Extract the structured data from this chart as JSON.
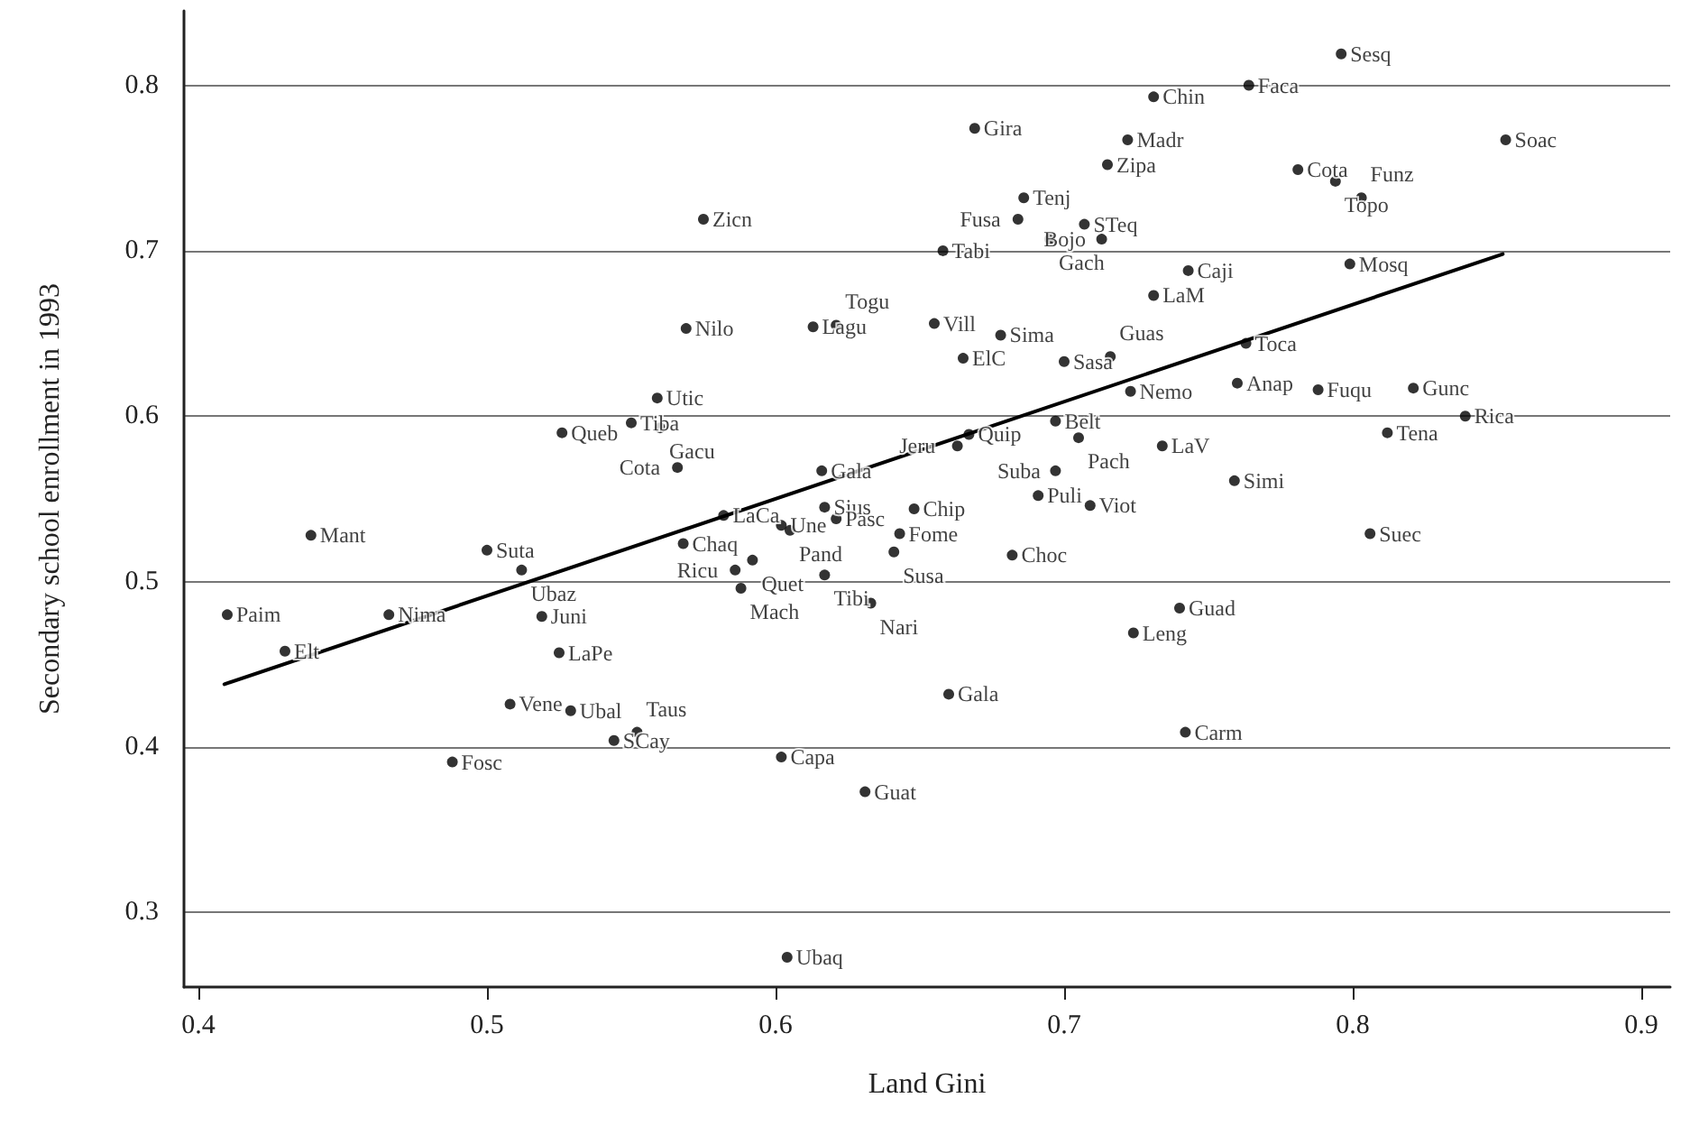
{
  "chart_data": {
    "type": "scatter",
    "xlabel": "Land Gini",
    "ylabel": "Secondary school enrollment in 1993",
    "xlim": [
      0.395,
      0.91
    ],
    "ylim": [
      0.255,
      0.845
    ],
    "xticks": [
      0.4,
      0.5,
      0.6,
      0.7,
      0.8,
      0.9
    ],
    "yticks": [
      0.3,
      0.4,
      0.5,
      0.6,
      0.7,
      0.8
    ],
    "grid": "y",
    "marker": "circle",
    "series": [
      {
        "type": "scatter",
        "color": "#000000",
        "x": [
          0.526,
          0.559,
          0.55,
          0.56,
          0.566,
          0.669,
          0.575,
          0.686,
          0.684,
          0.707,
          0.695,
          0.713,
          0.658,
          0.569,
          0.613,
          0.621,
          0.655,
          0.678,
          0.665,
          0.7,
          0.716,
          0.723,
          0.697,
          0.667,
          0.663,
          0.705,
          0.616,
          0.697,
          0.691,
          0.709,
          0.617,
          0.648,
          0.731,
          0.731,
          0.722,
          0.715,
          0.796,
          0.764,
          0.853,
          0.781,
          0.794,
          0.803,
          0.799,
          0.743,
          0.763,
          0.76,
          0.788,
          0.821,
          0.839,
          0.812,
          0.734,
          0.759,
          0.439,
          0.5,
          0.512,
          0.41,
          0.466,
          0.519,
          0.43,
          0.525,
          0.508,
          0.529,
          0.544,
          0.552,
          0.488,
          0.582,
          0.602,
          0.605,
          0.621,
          0.568,
          0.643,
          0.641,
          0.682,
          0.592,
          0.586,
          0.617,
          0.588,
          0.633,
          0.724,
          0.66,
          0.602,
          0.631,
          0.604,
          0.806,
          0.74,
          0.742
        ],
        "values": [
          0.59,
          0.611,
          0.596,
          0.593,
          0.569,
          0.774,
          0.719,
          0.732,
          0.719,
          0.716,
          0.707,
          0.707,
          0.7,
          0.653,
          0.654,
          0.655,
          0.656,
          0.649,
          0.635,
          0.633,
          0.636,
          0.615,
          0.597,
          0.589,
          0.582,
          0.587,
          0.567,
          0.567,
          0.552,
          0.546,
          0.545,
          0.544,
          0.673,
          0.793,
          0.767,
          0.752,
          0.819,
          0.8,
          0.767,
          0.749,
          0.742,
          0.732,
          0.692,
          0.688,
          0.644,
          0.62,
          0.616,
          0.617,
          0.6,
          0.59,
          0.582,
          0.561,
          0.528,
          0.519,
          0.507,
          0.48,
          0.48,
          0.479,
          0.458,
          0.457,
          0.426,
          0.422,
          0.404,
          0.409,
          0.391,
          0.54,
          0.534,
          0.531,
          0.538,
          0.523,
          0.529,
          0.518,
          0.516,
          0.513,
          0.507,
          0.504,
          0.496,
          0.487,
          0.469,
          0.432,
          0.394,
          0.373,
          0.273,
          0.529,
          0.484,
          0.409
        ],
        "value_labels": [
          "Queb",
          "Utic",
          "Tiba",
          "Gacu",
          "Cota",
          "Gira",
          "Zicn",
          "Tenj",
          "Fusa",
          "STeq",
          "Gach",
          "Bojo",
          "Tabi",
          "Nilo",
          "Lagu",
          "Togu",
          "Vill",
          "Sima",
          "ElC",
          "Sasa",
          "Guas",
          "Nemo",
          "Belt",
          "Quip",
          "Jeru",
          "Pach",
          "Gala",
          "Suba",
          "Puli",
          "Viot",
          "Sius",
          "Chip",
          "LaM",
          "Chin",
          "Madr",
          "Zipa",
          "Sesq",
          "Faca",
          "Soac",
          "Cota",
          "Topo",
          "Funz",
          "Mosq",
          "Caji",
          "Toca",
          "Anap",
          "Fuqu",
          "Gunc",
          "Rica",
          "Tena",
          "LaV",
          "Simi",
          "Mant",
          "Suta",
          "Ubaz",
          "Paim",
          "Nima",
          "Juni",
          "Elt",
          "LaPe",
          "Vene",
          "Ubal",
          "SCay",
          "Taus",
          "Fosc",
          "LaCa",
          "Une",
          "Pand",
          "Pasc",
          "Chaq",
          "Fome",
          "Susa",
          "Choc",
          "Quet",
          "Ricu",
          "Tibi",
          "Mach",
          "Nari",
          "Leng",
          "Gala",
          "Capa",
          "Guat",
          "Ubaq",
          "Suec",
          "Guad",
          "Carm"
        ]
      },
      {
        "type": "line",
        "color": "#000000",
        "marker": "none",
        "line_style": "solid",
        "x": [
          0.409,
          0.852
        ],
        "values": [
          0.438,
          0.698
        ]
      }
    ]
  }
}
